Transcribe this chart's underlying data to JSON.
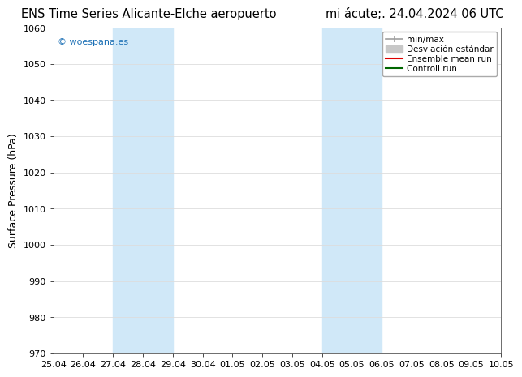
{
  "title_left": "ENS Time Series Alicante-Elche aeropuerto",
  "title_right": "mi ácute;. 24.04.2024 06 UTC",
  "ylabel": "Surface Pressure (hPa)",
  "ylim": [
    970,
    1060
  ],
  "yticks": [
    970,
    980,
    990,
    1000,
    1010,
    1020,
    1030,
    1040,
    1050,
    1060
  ],
  "xtick_labels": [
    "25.04",
    "26.04",
    "27.04",
    "28.04",
    "29.04",
    "30.04",
    "01.05",
    "02.05",
    "03.05",
    "04.05",
    "05.05",
    "06.05",
    "07.05",
    "08.05",
    "09.05",
    "10.05"
  ],
  "bg_color": "#ffffff",
  "plot_bg_color": "#ffffff",
  "shaded_regions": [
    {
      "xstart": 2,
      "xend": 4,
      "color": "#d0e8f8"
    },
    {
      "xstart": 9,
      "xend": 11,
      "color": "#d0e8f8"
    }
  ],
  "watermark": "© woespana.es",
  "watermark_color": "#1a6fb5",
  "legend_minmax_color": "#a0a0a0",
  "legend_std_color": "#c8c8c8",
  "legend_ensemble_color": "#dd0000",
  "legend_control_color": "#006600",
  "grid_color": "#dddddd",
  "tick_fontsize": 8,
  "label_fontsize": 9,
  "title_fontsize": 10.5
}
